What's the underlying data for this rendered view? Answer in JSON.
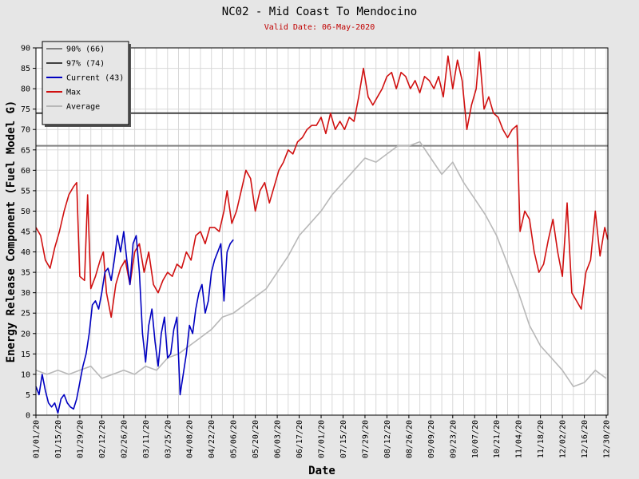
{
  "chart_data": {
    "type": "line",
    "title": "NC02 - Mid Coast To Mendocino",
    "subtitle": "Valid Date: 06-May-2020",
    "xlabel": "Date",
    "ylabel": "Energy Release Component (Fuel Model G)",
    "ylim": [
      0,
      90
    ],
    "y_ticks": [
      0,
      5,
      10,
      15,
      20,
      25,
      30,
      35,
      40,
      45,
      50,
      55,
      60,
      65,
      70,
      75,
      80,
      85,
      90
    ],
    "x_range": [
      "01/01/20",
      "12/31/20"
    ],
    "x_ticks": [
      "01/01/20",
      "01/15/20",
      "01/29/20",
      "02/12/20",
      "02/26/20",
      "03/11/20",
      "03/25/20",
      "04/08/20",
      "04/22/20",
      "05/06/20",
      "05/20/20",
      "06/03/20",
      "06/17/20",
      "07/01/20",
      "07/15/20",
      "07/29/20",
      "08/12/20",
      "08/26/20",
      "09/09/20",
      "09/23/20",
      "10/07/20",
      "10/21/20",
      "11/04/20",
      "11/18/20",
      "12/02/20",
      "12/16/20",
      "12/30/20"
    ],
    "grid": true,
    "legend_position": "top-left",
    "reference_lines": [
      {
        "name": "90% (66)",
        "value": 66,
        "color": "#808080"
      },
      {
        "name": "97% (74)",
        "value": 74,
        "color": "#404040"
      }
    ],
    "series": [
      {
        "name": "Current (43)",
        "color": "#0000c0",
        "points": [
          [
            "01/01/20",
            7
          ],
          [
            "01/03/20",
            5
          ],
          [
            "01/05/20",
            10
          ],
          [
            "01/07/20",
            6
          ],
          [
            "01/09/20",
            3
          ],
          [
            "01/11/20",
            2
          ],
          [
            "01/13/20",
            3
          ],
          [
            "01/15/20",
            0.5
          ],
          [
            "01/17/20",
            4
          ],
          [
            "01/19/20",
            5
          ],
          [
            "01/21/20",
            3
          ],
          [
            "01/23/20",
            2
          ],
          [
            "01/25/20",
            1.5
          ],
          [
            "01/27/20",
            4
          ],
          [
            "01/29/20",
            8
          ],
          [
            "01/31/20",
            12
          ],
          [
            "02/02/20",
            15
          ],
          [
            "02/04/20",
            20
          ],
          [
            "02/06/20",
            27
          ],
          [
            "02/08/20",
            28
          ],
          [
            "02/10/20",
            26
          ],
          [
            "02/12/20",
            30
          ],
          [
            "02/14/20",
            35
          ],
          [
            "02/16/20",
            36
          ],
          [
            "02/18/20",
            33
          ],
          [
            "02/20/20",
            38
          ],
          [
            "02/22/20",
            44
          ],
          [
            "02/24/20",
            40
          ],
          [
            "02/26/20",
            45
          ],
          [
            "02/28/20",
            38
          ],
          [
            "03/01/20",
            32
          ],
          [
            "03/03/20",
            42
          ],
          [
            "03/05/20",
            44
          ],
          [
            "03/07/20",
            35
          ],
          [
            "03/09/20",
            20
          ],
          [
            "03/11/20",
            13
          ],
          [
            "03/13/20",
            22
          ],
          [
            "03/15/20",
            26
          ],
          [
            "03/17/20",
            18
          ],
          [
            "03/19/20",
            12
          ],
          [
            "03/21/20",
            20
          ],
          [
            "03/23/20",
            24
          ],
          [
            "03/25/20",
            14
          ],
          [
            "03/27/20",
            15
          ],
          [
            "03/29/20",
            21
          ],
          [
            "03/31/20",
            24
          ],
          [
            "04/02/20",
            5
          ],
          [
            "04/04/20",
            10
          ],
          [
            "04/06/20",
            15
          ],
          [
            "04/08/20",
            22
          ],
          [
            "04/10/20",
            20
          ],
          [
            "04/12/20",
            26
          ],
          [
            "04/14/20",
            30
          ],
          [
            "04/16/20",
            32
          ],
          [
            "04/18/20",
            25
          ],
          [
            "04/20/20",
            28
          ],
          [
            "04/22/20",
            35
          ],
          [
            "04/24/20",
            38
          ],
          [
            "04/26/20",
            40
          ],
          [
            "04/28/20",
            42
          ],
          [
            "04/30/20",
            28
          ],
          [
            "05/02/20",
            40
          ],
          [
            "05/04/20",
            42
          ],
          [
            "05/06/20",
            43
          ]
        ]
      },
      {
        "name": "Max",
        "color": "#d01010",
        "points": [
          [
            "01/01/20",
            46
          ],
          [
            "01/04/20",
            44
          ],
          [
            "01/07/20",
            38
          ],
          [
            "01/10/20",
            36
          ],
          [
            "01/13/20",
            41
          ],
          [
            "01/16/20",
            45
          ],
          [
            "01/19/20",
            50
          ],
          [
            "01/22/20",
            54
          ],
          [
            "01/25/20",
            56
          ],
          [
            "01/27/20",
            57
          ],
          [
            "01/29/20",
            34
          ],
          [
            "02/01/20",
            33
          ],
          [
            "02/03/20",
            54
          ],
          [
            "02/05/20",
            31
          ],
          [
            "02/08/20",
            34
          ],
          [
            "02/11/20",
            38
          ],
          [
            "02/13/20",
            40
          ],
          [
            "02/15/20",
            30
          ],
          [
            "02/18/20",
            24
          ],
          [
            "02/21/20",
            32
          ],
          [
            "02/24/20",
            36
          ],
          [
            "02/27/20",
            38
          ],
          [
            "03/01/20",
            32
          ],
          [
            "03/04/20",
            40
          ],
          [
            "03/07/20",
            42
          ],
          [
            "03/10/20",
            35
          ],
          [
            "03/13/20",
            40
          ],
          [
            "03/16/20",
            32
          ],
          [
            "03/19/20",
            30
          ],
          [
            "03/22/20",
            33
          ],
          [
            "03/25/20",
            35
          ],
          [
            "03/28/20",
            34
          ],
          [
            "03/31/20",
            37
          ],
          [
            "04/03/20",
            36
          ],
          [
            "04/06/20",
            40
          ],
          [
            "04/09/20",
            38
          ],
          [
            "04/12/20",
            44
          ],
          [
            "04/15/20",
            45
          ],
          [
            "04/18/20",
            42
          ],
          [
            "04/21/20",
            46
          ],
          [
            "04/24/20",
            46
          ],
          [
            "04/27/20",
            45
          ],
          [
            "04/30/20",
            50
          ],
          [
            "05/02/20",
            55
          ],
          [
            "05/05/20",
            47
          ],
          [
            "05/08/20",
            50
          ],
          [
            "05/11/20",
            55
          ],
          [
            "05/14/20",
            60
          ],
          [
            "05/17/20",
            58
          ],
          [
            "05/20/20",
            50
          ],
          [
            "05/23/20",
            55
          ],
          [
            "05/26/20",
            57
          ],
          [
            "05/29/20",
            52
          ],
          [
            "06/01/20",
            56
          ],
          [
            "06/04/20",
            60
          ],
          [
            "06/07/20",
            62
          ],
          [
            "06/10/20",
            65
          ],
          [
            "06/13/20",
            64
          ],
          [
            "06/16/20",
            67
          ],
          [
            "06/19/20",
            68
          ],
          [
            "06/22/20",
            70
          ],
          [
            "06/25/20",
            71
          ],
          [
            "06/28/20",
            71
          ],
          [
            "07/01/20",
            73
          ],
          [
            "07/04/20",
            69
          ],
          [
            "07/07/20",
            74
          ],
          [
            "07/10/20",
            70
          ],
          [
            "07/13/20",
            72
          ],
          [
            "07/16/20",
            70
          ],
          [
            "07/19/20",
            73
          ],
          [
            "07/22/20",
            72
          ],
          [
            "07/25/20",
            78
          ],
          [
            "07/28/20",
            85
          ],
          [
            "07/31/20",
            78
          ],
          [
            "08/03/20",
            76
          ],
          [
            "08/06/20",
            78
          ],
          [
            "08/09/20",
            80
          ],
          [
            "08/12/20",
            83
          ],
          [
            "08/15/20",
            84
          ],
          [
            "08/18/20",
            80
          ],
          [
            "08/21/20",
            84
          ],
          [
            "08/24/20",
            83
          ],
          [
            "08/27/20",
            80
          ],
          [
            "08/30/20",
            82
          ],
          [
            "09/02/20",
            79
          ],
          [
            "09/05/20",
            83
          ],
          [
            "09/08/20",
            82
          ],
          [
            "09/11/20",
            80
          ],
          [
            "09/14/20",
            83
          ],
          [
            "09/17/20",
            78
          ],
          [
            "09/20/20",
            88
          ],
          [
            "09/23/20",
            80
          ],
          [
            "09/26/20",
            87
          ],
          [
            "09/29/20",
            82
          ],
          [
            "10/02/20",
            70
          ],
          [
            "10/05/20",
            76
          ],
          [
            "10/08/20",
            80
          ],
          [
            "10/10/20",
            89
          ],
          [
            "10/13/20",
            75
          ],
          [
            "10/16/20",
            78
          ],
          [
            "10/19/20",
            74
          ],
          [
            "10/22/20",
            73
          ],
          [
            "10/25/20",
            70
          ],
          [
            "10/28/20",
            68
          ],
          [
            "10/31/20",
            70
          ],
          [
            "11/03/20",
            71
          ],
          [
            "11/05/20",
            45
          ],
          [
            "11/08/20",
            50
          ],
          [
            "11/11/20",
            48
          ],
          [
            "11/14/20",
            40
          ],
          [
            "11/17/20",
            35
          ],
          [
            "11/20/20",
            37
          ],
          [
            "11/23/20",
            43
          ],
          [
            "11/26/20",
            48
          ],
          [
            "11/29/20",
            40
          ],
          [
            "12/02/20",
            34
          ],
          [
            "12/05/20",
            52
          ],
          [
            "12/08/20",
            30
          ],
          [
            "12/11/20",
            28
          ],
          [
            "12/14/20",
            26
          ],
          [
            "12/17/20",
            35
          ],
          [
            "12/20/20",
            38
          ],
          [
            "12/23/20",
            50
          ],
          [
            "12/26/20",
            39
          ],
          [
            "12/29/20",
            46
          ],
          [
            "12/31/20",
            43
          ]
        ]
      },
      {
        "name": "Average",
        "color": "#b8b8b8",
        "points": [
          [
            "01/01/20",
            11
          ],
          [
            "01/08/20",
            10
          ],
          [
            "01/15/20",
            11
          ],
          [
            "01/22/20",
            10
          ],
          [
            "01/29/20",
            11
          ],
          [
            "02/05/20",
            12
          ],
          [
            "02/12/20",
            9
          ],
          [
            "02/19/20",
            10
          ],
          [
            "02/26/20",
            11
          ],
          [
            "03/04/20",
            10
          ],
          [
            "03/11/20",
            12
          ],
          [
            "03/18/20",
            11
          ],
          [
            "03/25/20",
            14
          ],
          [
            "04/01/20",
            15
          ],
          [
            "04/08/20",
            17
          ],
          [
            "04/15/20",
            19
          ],
          [
            "04/22/20",
            21
          ],
          [
            "04/29/20",
            24
          ],
          [
            "05/06/20",
            25
          ],
          [
            "05/13/20",
            27
          ],
          [
            "05/20/20",
            29
          ],
          [
            "05/27/20",
            31
          ],
          [
            "06/03/20",
            35
          ],
          [
            "06/10/20",
            39
          ],
          [
            "06/17/20",
            44
          ],
          [
            "06/24/20",
            47
          ],
          [
            "07/01/20",
            50
          ],
          [
            "07/08/20",
            54
          ],
          [
            "07/15/20",
            57
          ],
          [
            "07/22/20",
            60
          ],
          [
            "07/29/20",
            63
          ],
          [
            "08/05/20",
            62
          ],
          [
            "08/12/20",
            64
          ],
          [
            "08/19/20",
            66
          ],
          [
            "08/26/20",
            66
          ],
          [
            "09/02/20",
            67
          ],
          [
            "09/09/20",
            63
          ],
          [
            "09/16/20",
            59
          ],
          [
            "09/23/20",
            62
          ],
          [
            "09/30/20",
            57
          ],
          [
            "10/07/20",
            53
          ],
          [
            "10/14/20",
            49
          ],
          [
            "10/21/20",
            44
          ],
          [
            "10/28/20",
            37
          ],
          [
            "11/04/20",
            30
          ],
          [
            "11/11/20",
            22
          ],
          [
            "11/18/20",
            17
          ],
          [
            "11/25/20",
            14
          ],
          [
            "12/02/20",
            11
          ],
          [
            "12/09/20",
            7
          ],
          [
            "12/16/20",
            8
          ],
          [
            "12/23/20",
            11
          ],
          [
            "12/30/20",
            9
          ]
        ]
      }
    ]
  }
}
